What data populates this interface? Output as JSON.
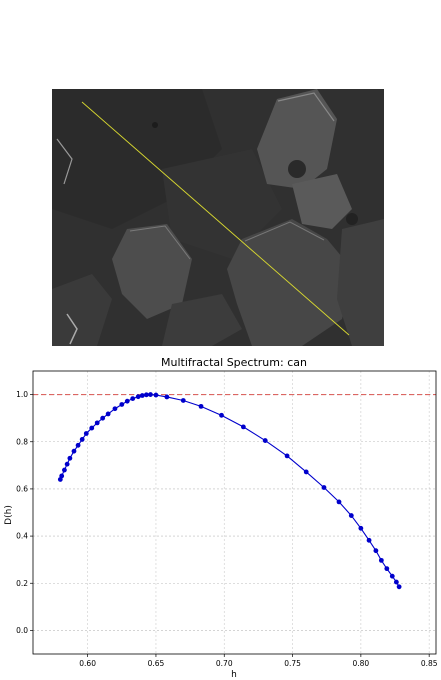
{
  "image_panel": {
    "description_icon": "sem-micrograph-image",
    "line_color": "#d8d830"
  },
  "chart_data": {
    "type": "scatter",
    "title": "Multifractal Spectrum: can",
    "xlabel": "h",
    "ylabel": "D(h)",
    "xlim": [
      0.56,
      0.855
    ],
    "ylim": [
      -0.1,
      1.1
    ],
    "xticks": [
      "0.60",
      "0.65",
      "0.70",
      "0.75",
      "0.80",
      "0.85"
    ],
    "xtick_values": [
      0.6,
      0.65,
      0.7,
      0.75,
      0.8,
      0.85
    ],
    "yticks": [
      "0.0",
      "0.2",
      "0.4",
      "0.6",
      "0.8",
      "1.0"
    ],
    "ytick_values": [
      0.0,
      0.2,
      0.4,
      0.6,
      0.8,
      1.0
    ],
    "grid": true,
    "reference_line": {
      "y": 1.0,
      "color": "#d9534f",
      "style": "dashed"
    },
    "series": [
      {
        "color": "#0000cc",
        "points": [
          [
            0.58,
            0.64
          ],
          [
            0.581,
            0.655
          ],
          [
            0.583,
            0.68
          ],
          [
            0.585,
            0.705
          ],
          [
            0.587,
            0.73
          ],
          [
            0.59,
            0.76
          ],
          [
            0.593,
            0.785
          ],
          [
            0.596,
            0.81
          ],
          [
            0.599,
            0.835
          ],
          [
            0.603,
            0.858
          ],
          [
            0.607,
            0.88
          ],
          [
            0.611,
            0.9
          ],
          [
            0.615,
            0.918
          ],
          [
            0.62,
            0.94
          ],
          [
            0.625,
            0.958
          ],
          [
            0.629,
            0.972
          ],
          [
            0.633,
            0.983
          ],
          [
            0.637,
            0.991
          ],
          [
            0.64,
            0.996
          ],
          [
            0.643,
            0.999
          ],
          [
            0.646,
            1.0
          ],
          [
            0.65,
            0.998
          ],
          [
            0.658,
            0.99
          ],
          [
            0.67,
            0.975
          ],
          [
            0.683,
            0.95
          ],
          [
            0.698,
            0.912
          ],
          [
            0.714,
            0.863
          ],
          [
            0.73,
            0.805
          ],
          [
            0.746,
            0.74
          ],
          [
            0.76,
            0.672
          ],
          [
            0.773,
            0.606
          ],
          [
            0.784,
            0.545
          ],
          [
            0.793,
            0.487
          ],
          [
            0.8,
            0.433
          ],
          [
            0.806,
            0.382
          ],
          [
            0.811,
            0.338
          ],
          [
            0.815,
            0.297
          ],
          [
            0.819,
            0.262
          ],
          [
            0.823,
            0.23
          ],
          [
            0.826,
            0.205
          ],
          [
            0.828,
            0.185
          ]
        ]
      }
    ]
  }
}
